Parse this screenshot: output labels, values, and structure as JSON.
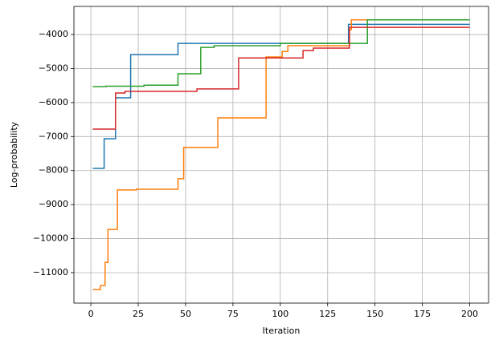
{
  "chart_data": {
    "type": "line",
    "xlabel": "Iteration",
    "ylabel": "Log-probability",
    "xlim": [
      -8.95,
      209.95
    ],
    "ylim": [
      -11896,
      -3174
    ],
    "xticks": [
      0,
      25,
      50,
      75,
      100,
      125,
      150,
      175,
      200
    ],
    "yticks": [
      {
        "value": -11000,
        "label": "−11000"
      },
      {
        "value": -10000,
        "label": "−10000"
      },
      {
        "value": -9000,
        "label": "−9000"
      },
      {
        "value": -8000,
        "label": "−8000"
      },
      {
        "value": -7000,
        "label": "−7000"
      },
      {
        "value": -6000,
        "label": "−6000"
      },
      {
        "value": -5000,
        "label": "−5000"
      },
      {
        "value": -4000,
        "label": "−4000"
      }
    ],
    "grid": true,
    "series": [
      {
        "color": "#1f77b4",
        "x": [
          1,
          7,
          7,
          13,
          13,
          21,
          21,
          46,
          46,
          136,
          136,
          200
        ],
        "values": [
          -7935,
          -7935,
          -7064,
          -7064,
          -5860,
          -5860,
          -4590,
          -4590,
          -4260,
          -4260,
          -3700,
          -3700
        ]
      },
      {
        "color": "#ff7f0e",
        "x": [
          1,
          5,
          5,
          7.5,
          7.5,
          9,
          9,
          14,
          14,
          24,
          24,
          46,
          46,
          49,
          49,
          67,
          67,
          92.5,
          92.5,
          101,
          101,
          104,
          104,
          136.5,
          136.5,
          137.5,
          137.5,
          200
        ],
        "values": [
          -11500,
          -11500,
          -11380,
          -11380,
          -10700,
          -10700,
          -9730,
          -9730,
          -8570,
          -8570,
          -8550,
          -8550,
          -8240,
          -8240,
          -7320,
          -7320,
          -6450,
          -6450,
          -4660,
          -4660,
          -4500,
          -4500,
          -4330,
          -4330,
          -3860,
          -3860,
          -3570,
          -3570
        ]
      },
      {
        "color": "#2ca02c",
        "x": [
          1,
          8,
          8,
          28,
          28,
          46,
          46,
          58,
          58,
          65,
          65,
          100,
          100,
          146,
          146,
          200
        ],
        "values": [
          -5530,
          -5530,
          -5520,
          -5520,
          -5490,
          -5490,
          -5155,
          -5155,
          -4380,
          -4380,
          -4330,
          -4330,
          -4260,
          -4260,
          -3570,
          -3570
        ]
      },
      {
        "color": "#d62728",
        "x": [
          1,
          13,
          13,
          18,
          18,
          56,
          56,
          78,
          78,
          112,
          112,
          117.5,
          117.5,
          136.5,
          136.5,
          200
        ],
        "values": [
          -6780,
          -6780,
          -5720,
          -5720,
          -5670,
          -5670,
          -5600,
          -5600,
          -4690,
          -4690,
          -4470,
          -4470,
          -4400,
          -4400,
          -3790,
          -3790
        ]
      }
    ]
  }
}
